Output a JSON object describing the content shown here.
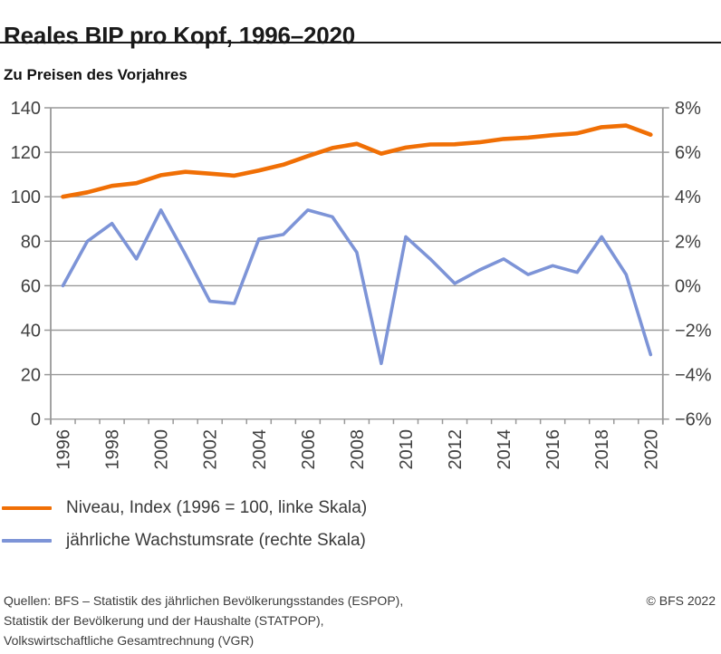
{
  "title": "Reales BIP pro Kopf, 1996–2020",
  "subtitle": "Zu Preisen des Vorjahres",
  "chart_data": {
    "type": "line",
    "x": [
      1996,
      1997,
      1998,
      1999,
      2000,
      2001,
      2002,
      2003,
      2004,
      2005,
      2006,
      2007,
      2008,
      2009,
      2010,
      2011,
      2012,
      2013,
      2014,
      2015,
      2016,
      2017,
      2018,
      2019,
      2020
    ],
    "x_label_every": 2,
    "series": [
      {
        "name": "Niveau, Index (1996 = 100, linke Skala)",
        "axis": "left",
        "color": "#f06f05",
        "values": [
          100,
          102.0,
          104.9,
          106.1,
          109.7,
          111.2,
          110.4,
          109.5,
          111.8,
          114.4,
          118.3,
          121.9,
          123.8,
          119.4,
          122.1,
          123.5,
          123.6,
          124.5,
          126.0,
          126.6,
          127.7,
          128.5,
          131.3,
          132.0,
          127.9
        ]
      },
      {
        "name": "jährliche Wachstumsrate (rechte Skala)",
        "axis": "right",
        "color": "#7d94d7",
        "values": [
          0.0,
          2.0,
          2.8,
          1.2,
          3.4,
          1.4,
          -0.7,
          -0.8,
          2.1,
          2.3,
          3.4,
          3.1,
          1.5,
          -3.5,
          2.2,
          1.2,
          0.1,
          0.7,
          1.2,
          0.5,
          0.9,
          0.6,
          2.2,
          0.5,
          -3.1
        ]
      }
    ],
    "left_axis": {
      "range": [
        0,
        140
      ],
      "tick_step": 20,
      "tick_labels": [
        "0",
        "20",
        "40",
        "60",
        "80",
        "100",
        "120",
        "140"
      ]
    },
    "right_axis": {
      "range": [
        -6,
        8
      ],
      "tick_step": 2,
      "tick_labels": [
        "−6%",
        "−4%",
        "−2%",
        "0%",
        "2%",
        "4%",
        "6%",
        "8%"
      ]
    },
    "grid": true,
    "legend_position": "bottom-left"
  },
  "legend": {
    "items": [
      {
        "label": "Niveau, Index (1996 = 100, linke Skala)",
        "color": "#f06f05"
      },
      {
        "label": "jährliche Wachstumsrate (rechte Skala)",
        "color": "#7d94d7"
      }
    ]
  },
  "footer": {
    "sources": [
      "Quellen: BFS – Statistik des jährlichen Bevölkerungsstandes (ESPOP),",
      "Statistik der Bevölkerung und der Haushalte (STATPOP),",
      "Volkswirtschaftliche Gesamtrechnung (VGR)"
    ],
    "copyright": "© BFS 2022"
  },
  "colors": {
    "grid": "#999999",
    "axis_text": "#404040",
    "title_text": "#1a1a1a",
    "footer_text": "#3c3c3c"
  }
}
